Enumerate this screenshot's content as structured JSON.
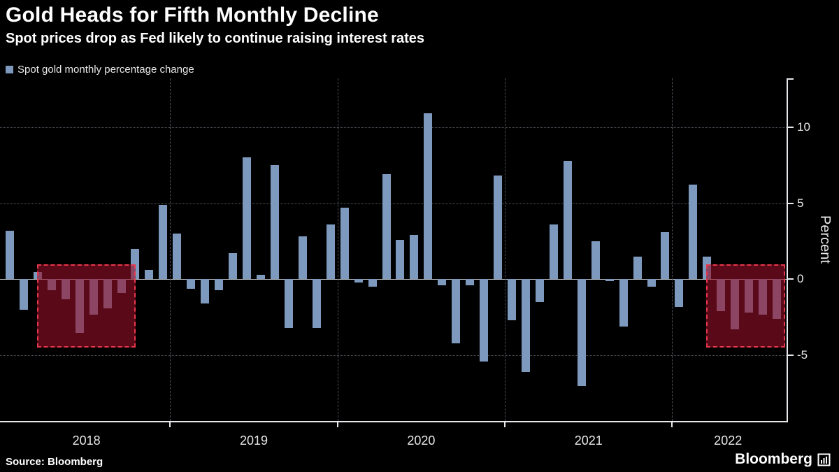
{
  "header": {
    "title": "Gold Heads for Fifth Monthly Decline",
    "subtitle": "Spot prices drop as Fed likely to continue raising interest rates"
  },
  "legend": {
    "label": "Spot gold monthly percentage change",
    "swatch_color": "#7d99bd"
  },
  "footer": {
    "source": "Source: Bloomberg",
    "brand": "Bloomberg"
  },
  "chart_data": {
    "type": "bar",
    "title": "Gold Heads for Fifth Monthly Decline",
    "subtitle": "Spot prices drop as Fed likely to continue raising interest rates",
    "series_name": "Spot gold monthly percentage change",
    "ylabel": "Percent",
    "ylabel_side": "right",
    "yticks": [
      10,
      5,
      0,
      -5
    ],
    "ylim": [
      -9.3,
      13.2
    ],
    "grid": "dotted horizontal lines, dashed vertical year-boundary lines",
    "legend_position": "top-left",
    "bar_color": "#7d99bd",
    "background_color": "#000000",
    "highlight_fill": "rgba(150,15,40,0.6)",
    "highlight_border": "#e8374a",
    "months": [
      "2018-01",
      "2018-02",
      "2018-03",
      "2018-04",
      "2018-05",
      "2018-06",
      "2018-07",
      "2018-08",
      "2018-09",
      "2018-10",
      "2018-11",
      "2018-12",
      "2019-01",
      "2019-02",
      "2019-03",
      "2019-04",
      "2019-05",
      "2019-06",
      "2019-07",
      "2019-08",
      "2019-09",
      "2019-10",
      "2019-11",
      "2019-12",
      "2020-01",
      "2020-02",
      "2020-03",
      "2020-04",
      "2020-05",
      "2020-06",
      "2020-07",
      "2020-08",
      "2020-09",
      "2020-10",
      "2020-11",
      "2020-12",
      "2021-01",
      "2021-02",
      "2021-03",
      "2021-04",
      "2021-05",
      "2021-06",
      "2021-07",
      "2021-08",
      "2021-09",
      "2021-10",
      "2021-11",
      "2021-12",
      "2022-01",
      "2022-02",
      "2022-03",
      "2022-04",
      "2022-05",
      "2022-06",
      "2022-07",
      "2022-08"
    ],
    "values": [
      3.2,
      -2.0,
      0.5,
      -0.7,
      -1.3,
      -3.5,
      -2.3,
      -1.9,
      -0.9,
      2.0,
      0.6,
      4.9,
      3.0,
      -0.6,
      -1.6,
      -0.7,
      1.7,
      8.0,
      0.3,
      7.5,
      -3.2,
      2.8,
      -3.2,
      3.6,
      4.7,
      -0.2,
      -0.5,
      6.9,
      2.6,
      2.9,
      10.9,
      -0.4,
      -4.2,
      -0.4,
      -5.4,
      6.8,
      -2.7,
      -6.1,
      -1.5,
      3.6,
      7.8,
      -7.0,
      2.5,
      -0.1,
      -3.1,
      1.5,
      -0.5,
      3.1,
      -1.8,
      6.2,
      1.5,
      -2.1,
      -3.3,
      -2.2,
      -2.3,
      -2.6
    ],
    "year_labels": [
      {
        "label": "2018",
        "center_index": 5.5
      },
      {
        "label": "2019",
        "center_index": 17.5
      },
      {
        "label": "2020",
        "center_index": 29.5
      },
      {
        "label": "2021",
        "center_index": 41.5
      },
      {
        "label": "2022",
        "center_index": 51.5
      }
    ],
    "year_boundaries": [
      12,
      24,
      36,
      48
    ],
    "highlights": [
      {
        "name": "2018-decline-streak",
        "start_index": 3,
        "end_index": 8,
        "top_value": 1.0,
        "bottom_value": -4.5
      },
      {
        "name": "2022-decline-streak",
        "start_index": 51,
        "end_index": 55,
        "top_value": 1.0,
        "bottom_value": -4.5
      }
    ]
  }
}
